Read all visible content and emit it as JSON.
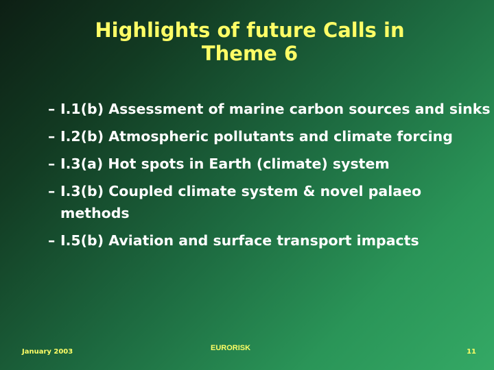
{
  "slide": {
    "title_line1": "Highlights of future Calls in",
    "title_line2": "Theme 6",
    "bullets": [
      {
        "marker": "–",
        "text": "I.1(b) Assessment of marine carbon sources and sinks"
      },
      {
        "marker": "–",
        "text": "I.2(b) Atmospheric pollutants and climate forcing"
      },
      {
        "marker": "–",
        "text": "I.3(a) Hot spots in Earth (climate) system"
      },
      {
        "marker": "–",
        "text": "I.3(b) Coupled climate system & novel palaeo methods"
      },
      {
        "marker": "–",
        "text": "I.5(b) Aviation and surface transport impacts"
      }
    ],
    "footer": {
      "date": "January 2003",
      "organization": "EURORISK",
      "page_number": "11"
    }
  },
  "colors": {
    "title": "#ffff66",
    "body_text": "#ffffff",
    "footer": "#ffff66",
    "background_dark": "#0d1f14",
    "background_light": "#34a965"
  }
}
